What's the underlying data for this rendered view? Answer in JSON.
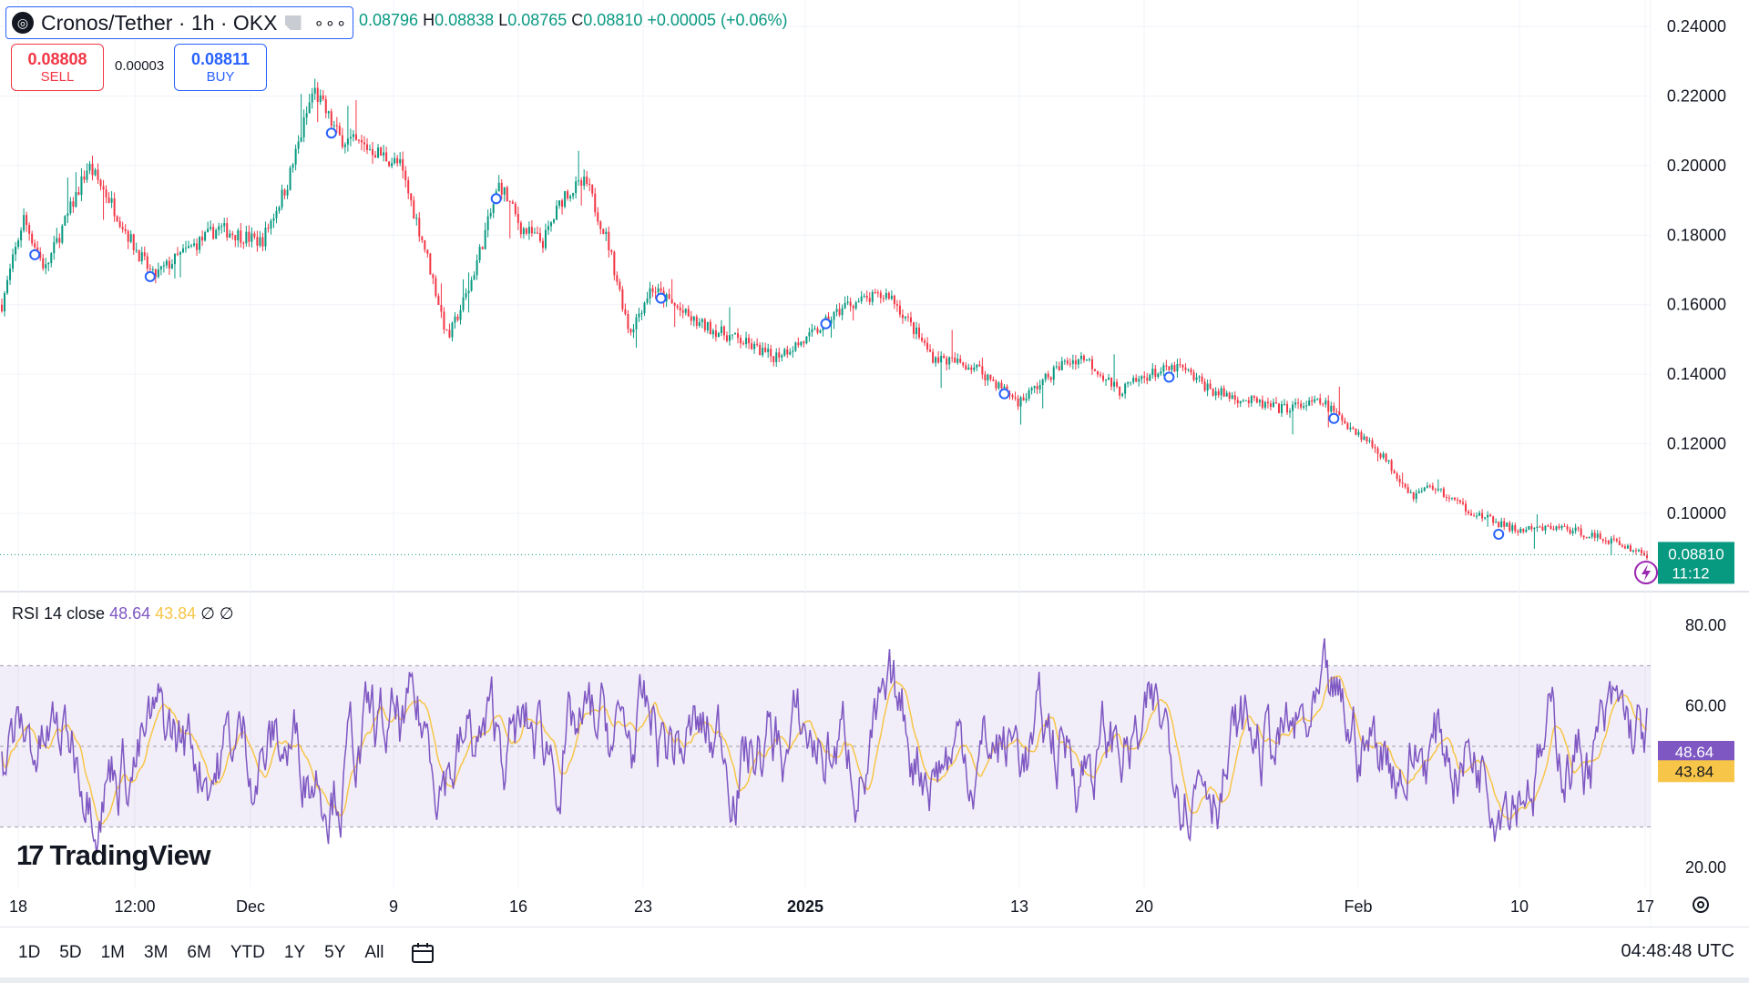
{
  "header": {
    "symbol": "Cronos/Tether · 1h · OKX",
    "more": "∘∘∘",
    "ohlc": {
      "open": "0.08796",
      "high_label": "H",
      "high": "0.08838",
      "low_label": "L",
      "low": "0.08765",
      "close_label": "C",
      "close": "0.08810",
      "change": "+0.00005 (+0.06%)"
    }
  },
  "trade": {
    "sell_price": "0.08808",
    "sell_label": "SELL",
    "spread": "0.00003",
    "buy_price": "0.08811",
    "buy_label": "BUY"
  },
  "price_tag": {
    "price": "0.08810",
    "countdown": "11:12"
  },
  "rsi_legend": {
    "label": "RSI 14 close",
    "rsi": "48.64",
    "ma": "43.84",
    "extra1": "∅",
    "extra2": "∅"
  },
  "rsi_tags": {
    "rsi": "48.64",
    "ma": "43.84"
  },
  "brand": "TradingView",
  "timeframes": [
    "1D",
    "5D",
    "1M",
    "3M",
    "6M",
    "YTD",
    "1Y",
    "5Y",
    "All"
  ],
  "clock": "04:48:48 UTC",
  "colors": {
    "up": "#089981",
    "down": "#f23645",
    "rsi": "#7e57c2",
    "rsi_ma": "#f7c548",
    "accent": "#2962ff"
  },
  "chart_data": [
    {
      "type": "candlestick",
      "title": "Cronos/Tether · 1h · OKX",
      "y_ticks": [
        "0.24000",
        "0.22000",
        "0.20000",
        "0.18000",
        "0.16000",
        "0.14000",
        "0.12000",
        "0.10000"
      ],
      "ylim": [
        0.078,
        0.245
      ],
      "x_ticks": [
        "18",
        "12:00",
        "Dec",
        "9",
        "16",
        "23",
        "2025",
        "13",
        "20",
        "Feb",
        "10",
        "17"
      ],
      "close_path": [
        [
          0,
          0.16
        ],
        [
          5,
          0.185
        ],
        [
          10,
          0.17
        ],
        [
          20,
          0.2
        ],
        [
          25,
          0.19
        ],
        [
          30,
          0.178
        ],
        [
          35,
          0.168
        ],
        [
          42,
          0.175
        ],
        [
          50,
          0.182
        ],
        [
          60,
          0.178
        ],
        [
          66,
          0.195
        ],
        [
          72,
          0.222
        ],
        [
          78,
          0.208
        ],
        [
          85,
          0.205
        ],
        [
          92,
          0.2
        ],
        [
          98,
          0.175
        ],
        [
          103,
          0.15
        ],
        [
          108,
          0.165
        ],
        [
          115,
          0.195
        ],
        [
          120,
          0.182
        ],
        [
          125,
          0.178
        ],
        [
          130,
          0.192
        ],
        [
          135,
          0.195
        ],
        [
          140,
          0.178
        ],
        [
          145,
          0.152
        ],
        [
          150,
          0.165
        ],
        [
          160,
          0.155
        ],
        [
          170,
          0.15
        ],
        [
          178,
          0.145
        ],
        [
          186,
          0.15
        ],
        [
          195,
          0.16
        ],
        [
          205,
          0.163
        ],
        [
          215,
          0.145
        ],
        [
          225,
          0.142
        ],
        [
          235,
          0.132
        ],
        [
          245,
          0.143
        ],
        [
          250,
          0.145
        ],
        [
          258,
          0.135
        ],
        [
          265,
          0.14
        ],
        [
          272,
          0.142
        ],
        [
          280,
          0.135
        ],
        [
          295,
          0.13
        ],
        [
          305,
          0.132
        ],
        [
          318,
          0.118
        ],
        [
          326,
          0.105
        ],
        [
          330,
          0.108
        ],
        [
          340,
          0.1
        ],
        [
          350,
          0.095
        ],
        [
          360,
          0.096
        ],
        [
          372,
          0.092
        ],
        [
          380,
          0.088
        ]
      ],
      "markers": [
        "o",
        "o",
        "o",
        "o",
        "o",
        "o",
        "o",
        "o",
        "o",
        "o"
      ],
      "current_price": "0.08810"
    },
    {
      "type": "line",
      "title": "RSI 14 close",
      "series": [
        {
          "name": "RSI",
          "values": [
            48.64
          ]
        },
        {
          "name": "RSI MA",
          "values": [
            43.84
          ]
        }
      ],
      "y_ticks": [
        "80.00",
        "60.00",
        "20.00"
      ],
      "ylim": [
        15,
        85
      ],
      "band": [
        30,
        70
      ],
      "midline": 50
    }
  ]
}
